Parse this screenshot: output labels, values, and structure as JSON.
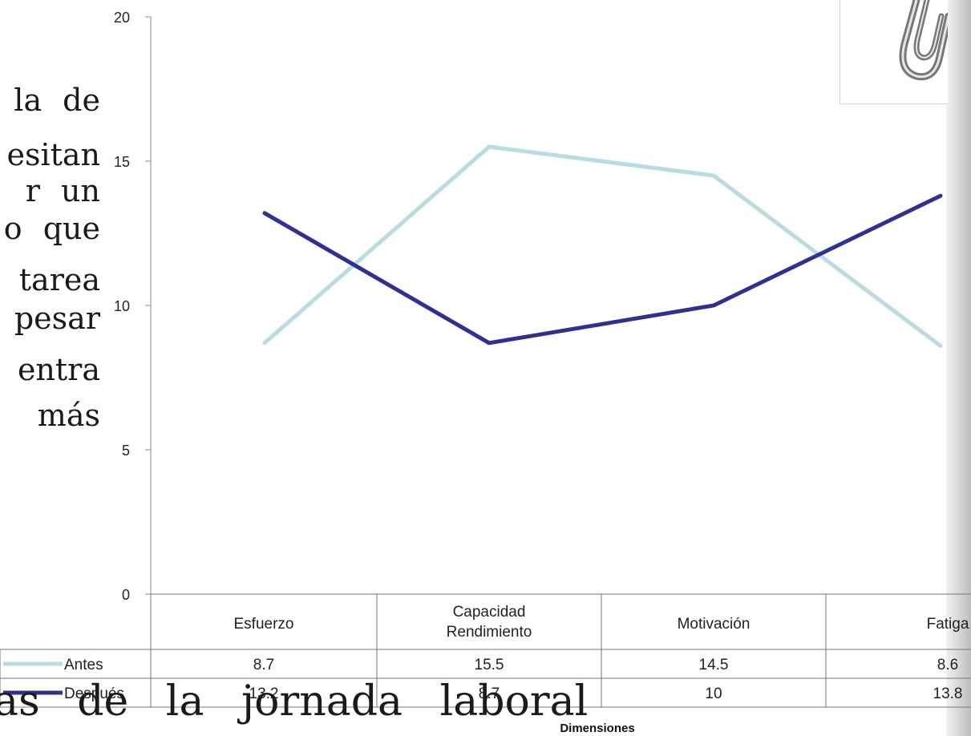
{
  "slide_text": {
    "lines": [
      "la de",
      "esitan",
      "r un",
      "o que",
      "tarea",
      "pesar",
      "entra",
      "más"
    ],
    "bottom": "as de la jornada laboral"
  },
  "chart_data": {
    "type": "line",
    "categories": [
      "Esfuerzo",
      "Capacidad Rendimiento",
      "Motivación",
      "Fatiga"
    ],
    "category_lines": [
      [
        "Esfuerzo"
      ],
      [
        "Capacidad",
        "Rendimiento"
      ],
      [
        "Motivación"
      ],
      [
        "Fatiga"
      ]
    ],
    "series": [
      {
        "name": "Antes",
        "values": [
          8.7,
          15.5,
          14.5,
          8.6
        ],
        "labels": [
          "8.7",
          "15.5",
          "14.5",
          "8.6"
        ],
        "color": "#b7dde2"
      },
      {
        "name": "Después",
        "values": [
          13.2,
          8.7,
          10,
          13.8
        ],
        "labels": [
          "13.2",
          "8.7",
          "10",
          "13.8"
        ],
        "color": "#2e3192"
      }
    ],
    "yticks": [
      "0",
      "5",
      "10",
      "15",
      "20"
    ],
    "ylim": [
      0,
      20
    ],
    "xlabel": "Dimensiones",
    "ylabel": "",
    "title": "",
    "data_table": true,
    "grid": false
  }
}
